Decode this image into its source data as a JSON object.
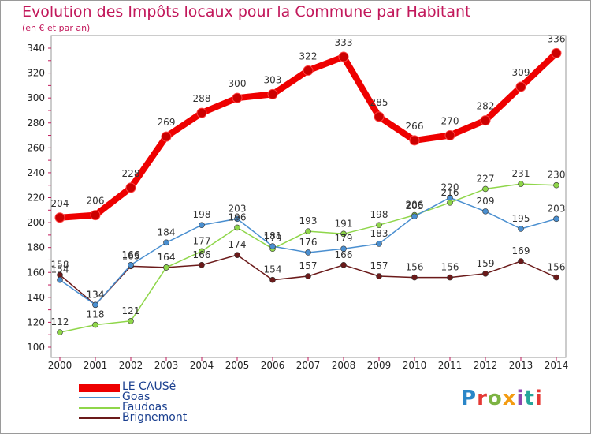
{
  "header": {
    "title": "Evolution des Impôts locaux pour la Commune par Habitant",
    "subtitle": "(en € et par an)"
  },
  "logo": {
    "text": "Proxiti",
    "colors": [
      "#2a86c8",
      "#e53935",
      "#7cb342",
      "#f39c12",
      "#8e44ad",
      "#26a69a",
      "#e53935"
    ]
  },
  "chart_data": {
    "type": "line",
    "title": "Evolution des Impôts locaux pour la Commune par Habitant",
    "subtitle": "(en € et par an)",
    "xlabel": "",
    "ylabel": "",
    "x": [
      "2000",
      "2001",
      "2002",
      "2003",
      "2004",
      "2005",
      "2006",
      "2007",
      "2008",
      "2009",
      "2010",
      "2011",
      "2012",
      "2013",
      "2014"
    ],
    "ylim": [
      100,
      340
    ],
    "yticks": [
      100,
      120,
      140,
      160,
      180,
      200,
      220,
      240,
      260,
      280,
      300,
      320,
      340
    ],
    "grid": false,
    "legend_position": "bottom-left",
    "series": [
      {
        "name": "LE CAUSé",
        "color": "#ee0000",
        "values": [
          204,
          206,
          228,
          269,
          288,
          300,
          303,
          322,
          333,
          285,
          266,
          270,
          282,
          309,
          336
        ]
      },
      {
        "name": "Goas",
        "color": "#4a8fd0",
        "values": [
          154,
          134,
          166,
          184,
          198,
          203,
          181,
          176,
          179,
          183,
          205,
          220,
          209,
          195,
          203
        ]
      },
      {
        "name": "Faudoas",
        "color": "#8fd64a",
        "values": [
          112,
          118,
          121,
          164,
          177,
          196,
          179,
          193,
          191,
          198,
          206,
          216,
          227,
          231,
          230
        ]
      },
      {
        "name": "Brignemont",
        "color": "#6b1a1a",
        "values": [
          158,
          134,
          165,
          164,
          166,
          174,
          154,
          157,
          166,
          157,
          156,
          156,
          159,
          169,
          156
        ]
      }
    ]
  }
}
